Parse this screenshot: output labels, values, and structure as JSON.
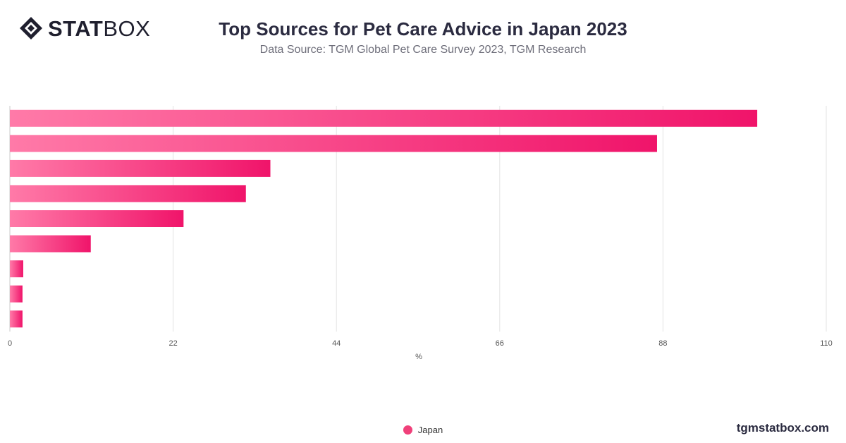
{
  "brand": {
    "logo_bold": "STAT",
    "logo_light": "BOX",
    "website": "tgmstatbox.com"
  },
  "colors": {
    "bar_start": "#ff7aa8",
    "bar_end": "#f0146a",
    "grid": "#e3e3e3"
  },
  "chart_data": {
    "type": "bar",
    "orientation": "horizontal",
    "title": "Top Sources for Pet Care Advice in Japan 2023",
    "subtitle": "Data Source: TGM Global Pet Care Survey 2023, TGM Research",
    "xlabel": "%",
    "ylabel": "",
    "xlim": [
      0,
      110
    ],
    "xticks": [
      "0",
      "22",
      "44",
      "66",
      "88",
      "110"
    ],
    "xtick_values": [
      0,
      22,
      44,
      66,
      88,
      110
    ],
    "grid": true,
    "legend_position": "bottom-center",
    "series": [
      {
        "name": "Japan",
        "values": [
          100.7,
          87.2,
          35.1,
          31.8,
          23.4,
          10.9,
          1.8,
          1.7,
          1.7
        ]
      }
    ]
  }
}
